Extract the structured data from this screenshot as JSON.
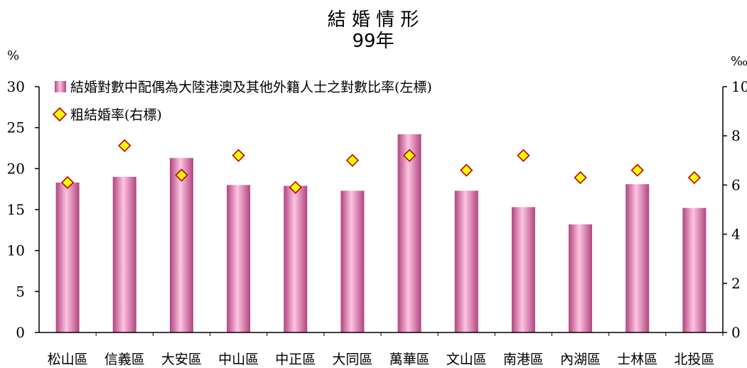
{
  "chart_data": {
    "type": "bar",
    "title": "結 婚 情 形",
    "subtitle": "99年",
    "left_unit": "%",
    "right_unit": "‰",
    "categories": [
      "松山區",
      "信義區",
      "大安區",
      "中山區",
      "中正區",
      "大同區",
      "萬華區",
      "文山區",
      "南港區",
      "內湖區",
      "士林區",
      "北投區"
    ],
    "series": [
      {
        "name": "結婚對數中配偶為大陸港澳及其他外籍人士之對數比率(左標)",
        "kind": "bar",
        "axis": "left",
        "color": "#e88cc0",
        "values": [
          18.3,
          19.0,
          21.3,
          18.0,
          17.9,
          17.3,
          24.2,
          17.3,
          15.3,
          13.2,
          18.1,
          15.2
        ]
      },
      {
        "name": "粗結婚率(右標)",
        "kind": "marker",
        "axis": "right",
        "color": "#ffff00",
        "values": [
          6.1,
          7.6,
          6.4,
          7.2,
          5.9,
          7.0,
          7.2,
          6.6,
          7.2,
          6.3,
          6.6,
          6.3
        ]
      }
    ],
    "ylim_left": [
      0,
      30
    ],
    "yticks_left": [
      0,
      5,
      10,
      15,
      20,
      25,
      30
    ],
    "ylim_right": [
      0,
      10
    ],
    "yticks_right": [
      0,
      2,
      4,
      6,
      8,
      10
    ],
    "grid": false,
    "legend_position": "top-left"
  }
}
